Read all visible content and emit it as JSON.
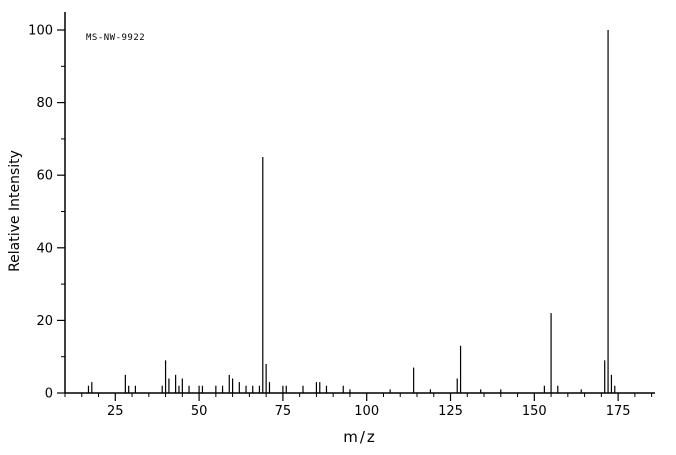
{
  "chart_data": {
    "type": "bar",
    "title": "MS-NW-9922",
    "xlabel": "m/z",
    "ylabel": "Relative Intensity",
    "xlim": [
      10,
      186
    ],
    "ylim": [
      0,
      100
    ],
    "x_major_ticks": [
      25,
      50,
      75,
      100,
      125,
      150,
      175
    ],
    "x_minor_step": 5,
    "y_major_ticks": [
      0,
      20,
      40,
      60,
      80,
      100
    ],
    "y_minor_step": 10,
    "axis_color": "#000000",
    "background": "#ffffff",
    "legend": "none",
    "grid": false,
    "peaks": [
      [
        17,
        2
      ],
      [
        18,
        3
      ],
      [
        28,
        5
      ],
      [
        29,
        2
      ],
      [
        31,
        2
      ],
      [
        39,
        2
      ],
      [
        40,
        9
      ],
      [
        41,
        4
      ],
      [
        43,
        5
      ],
      [
        44,
        2
      ],
      [
        45,
        4
      ],
      [
        47,
        2
      ],
      [
        50,
        2
      ],
      [
        51,
        2
      ],
      [
        55,
        2
      ],
      [
        57,
        2
      ],
      [
        59,
        5
      ],
      [
        60,
        4
      ],
      [
        62,
        3
      ],
      [
        64,
        2
      ],
      [
        66,
        2
      ],
      [
        68,
        2
      ],
      [
        69,
        65
      ],
      [
        70,
        8
      ],
      [
        71,
        3
      ],
      [
        75,
        2
      ],
      [
        76,
        2
      ],
      [
        81,
        2
      ],
      [
        85,
        3
      ],
      [
        86,
        3
      ],
      [
        88,
        2
      ],
      [
        93,
        2
      ],
      [
        95,
        1
      ],
      [
        107,
        1
      ],
      [
        114,
        7
      ],
      [
        119,
        1
      ],
      [
        127,
        4
      ],
      [
        128,
        13
      ],
      [
        134,
        1
      ],
      [
        140,
        1
      ],
      [
        153,
        2
      ],
      [
        155,
        22
      ],
      [
        157,
        2
      ],
      [
        164,
        1
      ],
      [
        171,
        9
      ],
      [
        172,
        100
      ],
      [
        173,
        5
      ],
      [
        174,
        2
      ]
    ]
  }
}
